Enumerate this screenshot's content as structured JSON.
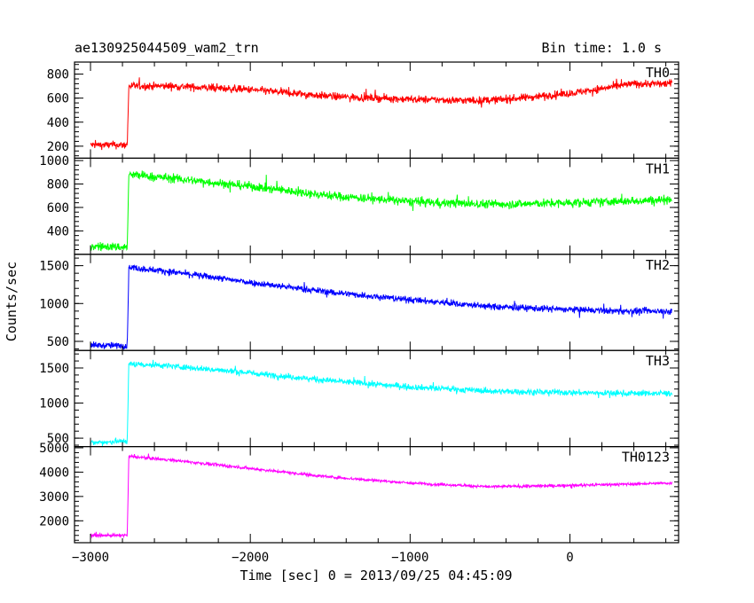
{
  "header": {
    "left_title": "ae130925044509_wam2_trn",
    "right_title": "Bin time: 1.0 s"
  },
  "chart_data": {
    "type": "line",
    "title": "ae130925044509_wam2_trn",
    "subtitle": "Bin time: 1.0 s",
    "xlabel": "Time [sec] 0 = 2013/09/25 04:45:09",
    "ylabel": "Counts/sec",
    "xlim": [
      -3100,
      680
    ],
    "x_ticks": [
      -3000,
      -2000,
      -1000,
      0
    ],
    "x_tick_labels": [
      "−3000",
      "−2000",
      "−1000",
      "0"
    ],
    "grid": false,
    "panels": [
      {
        "name": "TH0",
        "color": "#ff0000",
        "ylim": [
          100,
          900
        ],
        "y_ticks": [
          200,
          400,
          600,
          800
        ],
        "noise": 30,
        "x": [
          -3000,
          -2770,
          -2760,
          -2500,
          -2000,
          -1500,
          -1000,
          -600,
          -400,
          0,
          200,
          400,
          640
        ],
        "y": [
          210,
          210,
          700,
          700,
          670,
          615,
          590,
          580,
          590,
          640,
          680,
          720,
          720
        ]
      },
      {
        "name": "TH1",
        "color": "#00ff00",
        "ylim": [
          200,
          1020
        ],
        "y_ticks": [
          400,
          600,
          800,
          1000
        ],
        "noise": 35,
        "x": [
          -3000,
          -2770,
          -2760,
          -2500,
          -2000,
          -1500,
          -1000,
          -600,
          -300,
          0,
          300,
          640
        ],
        "y": [
          270,
          260,
          880,
          850,
          780,
          700,
          650,
          630,
          630,
          640,
          650,
          670
        ]
      },
      {
        "name": "TH2",
        "color": "#0000ff",
        "ylim": [
          380,
          1650
        ],
        "y_ticks": [
          500,
          1000,
          1500
        ],
        "noise": 40,
        "x": [
          -3000,
          -2770,
          -2760,
          -2500,
          -2000,
          -1500,
          -1000,
          -500,
          0,
          300,
          640
        ],
        "y": [
          450,
          440,
          1480,
          1420,
          1280,
          1150,
          1050,
          960,
          920,
          900,
          900
        ]
      },
      {
        "name": "TH3",
        "color": "#00ffff",
        "ylim": [
          380,
          1750
        ],
        "y_ticks": [
          500,
          1000,
          1500
        ],
        "noise": 40,
        "x": [
          -3000,
          -2770,
          -2760,
          -2500,
          -2000,
          -1500,
          -1000,
          -500,
          0,
          300,
          640
        ],
        "y": [
          430,
          460,
          1560,
          1530,
          1430,
          1320,
          1230,
          1170,
          1150,
          1140,
          1140
        ]
      },
      {
        "name": "TH0123",
        "color": "#ff00ff",
        "ylim": [
          1100,
          5050
        ],
        "y_ticks": [
          2000,
          3000,
          4000,
          5000
        ],
        "noise": 55,
        "x": [
          -3000,
          -2770,
          -2760,
          -2500,
          -2000,
          -1500,
          -1000,
          -500,
          0,
          300,
          640
        ],
        "y": [
          1400,
          1400,
          4650,
          4500,
          4150,
          3800,
          3550,
          3400,
          3450,
          3500,
          3550
        ]
      }
    ]
  }
}
